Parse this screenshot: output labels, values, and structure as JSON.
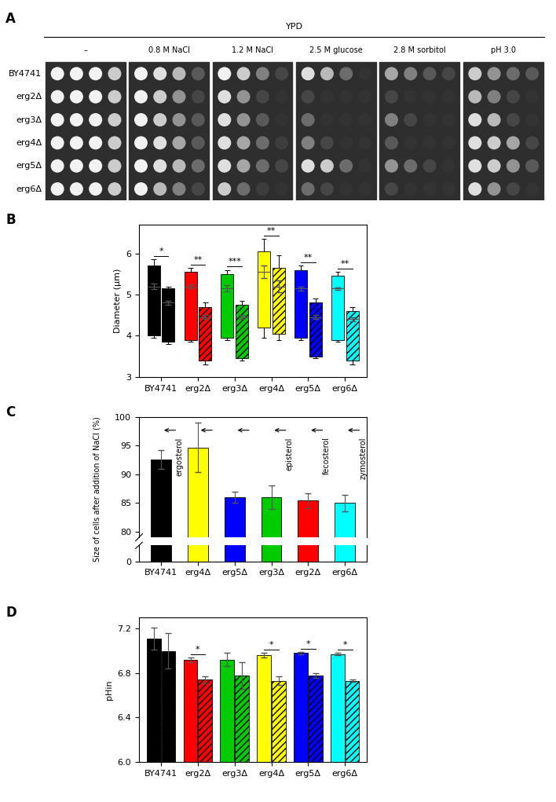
{
  "panel_a": {
    "panel_label": "A",
    "header": "YPD",
    "conditions": [
      "–",
      "0.8 M NaCl",
      "1.2 M NaCl",
      "2.5 M glucose",
      "2.8 M sorbitol",
      "pH 3.0"
    ],
    "strains": [
      "BY4741",
      "erg2Δ",
      "erg3Δ",
      "erg4Δ",
      "erg5Δ",
      "erg6Δ"
    ],
    "growth": [
      [
        [
          1,
          1,
          1,
          0.8
        ],
        [
          1,
          1,
          1,
          0.8
        ],
        [
          1,
          1,
          1,
          0.8
        ],
        [
          1,
          1,
          1,
          0.8
        ],
        [
          1,
          1,
          1,
          0.8
        ],
        [
          1,
          1,
          1,
          0.8
        ]
      ],
      [
        [
          1,
          0.9,
          0.7,
          0.2
        ],
        [
          1,
          0.8,
          0.5,
          0.1
        ],
        [
          1,
          0.8,
          0.5,
          0.2
        ],
        [
          1,
          0.9,
          0.6,
          0.2
        ],
        [
          1,
          0.9,
          0.7,
          0.3
        ],
        [
          1,
          0.7,
          0.4,
          0.1
        ]
      ],
      [
        [
          1,
          0.8,
          0.4,
          0.1
        ],
        [
          0.9,
          0.5,
          0.1,
          0
        ],
        [
          0.9,
          0.5,
          0.2,
          0
        ],
        [
          0.9,
          0.6,
          0.3,
          0.05
        ],
        [
          0.9,
          0.6,
          0.3,
          0.1
        ],
        [
          0.8,
          0.3,
          0.05,
          0
        ]
      ],
      [
        [
          0.9,
          0.7,
          0.3,
          0
        ],
        [
          0.1,
          0,
          0,
          0
        ],
        [
          0.3,
          0,
          0,
          0
        ],
        [
          0.4,
          0.1,
          0,
          0
        ],
        [
          0.9,
          0.8,
          0.3,
          0
        ],
        [
          0.3,
          0.1,
          0,
          0
        ]
      ],
      [
        [
          0.6,
          0.4,
          0.2,
          0.1
        ],
        [
          0.1,
          0,
          0,
          0
        ],
        [
          0.4,
          0.1,
          0,
          0
        ],
        [
          0.2,
          0,
          0,
          0
        ],
        [
          0.5,
          0.3,
          0.1,
          0
        ],
        [
          0.1,
          0,
          0,
          0
        ]
      ],
      [
        [
          0.8,
          0.5,
          0.3,
          0.2
        ],
        [
          0.7,
          0.4,
          0.1,
          0
        ],
        [
          0.9,
          0.7,
          0.1,
          0
        ],
        [
          0.9,
          0.8,
          0.6,
          0.1
        ],
        [
          0.9,
          0.8,
          0.5,
          0.2
        ],
        [
          0.9,
          0.5,
          0.1,
          0
        ]
      ]
    ]
  },
  "chart_data": [
    {
      "type": "box",
      "panel_label": "B",
      "categories": [
        "BY4741",
        "erg2Δ",
        "erg3Δ",
        "erg4Δ",
        "erg5Δ",
        "erg6Δ"
      ],
      "colors": [
        "#000000",
        "#ff0000",
        "#00cc00",
        "#ffff00",
        "#0000ff",
        "#00ffff"
      ],
      "ylabel": "Diameter (μm)",
      "ylim": [
        3,
        6.7
      ],
      "yticks": [
        3,
        4,
        5,
        6
      ],
      "groups": [
        {
          "whisker_low": [
            3.95,
            3.85,
            3.9,
            3.95,
            3.9,
            3.85
          ],
          "q1": [
            4.0,
            3.9,
            3.95,
            4.2,
            3.95,
            3.9
          ],
          "q3": [
            5.7,
            5.55,
            5.5,
            6.05,
            5.6,
            5.45
          ],
          "whisker_high": [
            5.85,
            5.65,
            5.6,
            6.35,
            5.7,
            5.55
          ],
          "mean": [
            5.2,
            5.2,
            5.15,
            5.55,
            5.15,
            5.15
          ],
          "mean_error": [
            0.07,
            0.05,
            0.07,
            0.15,
            0.05,
            0.03
          ]
        },
        {
          "whisker_low": [
            3.8,
            3.3,
            3.4,
            3.9,
            3.45,
            3.3
          ],
          "q1": [
            3.85,
            3.4,
            3.45,
            4.05,
            3.5,
            3.4
          ],
          "q3": [
            5.15,
            4.7,
            4.75,
            5.65,
            4.8,
            4.6
          ],
          "whisker_high": [
            5.2,
            4.8,
            4.85,
            5.95,
            4.9,
            4.7
          ],
          "mean": [
            4.8,
            4.45,
            4.45,
            5.2,
            4.45,
            4.4
          ],
          "mean_error": [
            0.05,
            0.05,
            0.05,
            0.15,
            0.05,
            0.04
          ]
        }
      ],
      "significance": [
        "*",
        "**",
        "***",
        "**",
        "**",
        "**"
      ]
    },
    {
      "type": "bar",
      "panel_label": "C",
      "categories": [
        "BY4741",
        "erg4Δ",
        "erg5Δ",
        "erg3Δ",
        "erg2Δ",
        "erg6Δ"
      ],
      "colors": [
        "#000000",
        "#ffff00",
        "#0000ff",
        "#00cc00",
        "#ff0000",
        "#00ffff"
      ],
      "values": [
        92.6,
        94.7,
        86.0,
        86.0,
        85.4,
        85.0
      ],
      "errors": [
        1.6,
        4.3,
        0.9,
        2.0,
        1.3,
        1.4
      ],
      "ylabel": "Size of cells after addition of NaCl (%)",
      "ylim": [
        79,
        100
      ],
      "yticks": [
        80,
        85,
        90,
        95,
        100
      ],
      "break_ylim": [
        0,
        1.5
      ],
      "break_yticks": [
        0
      ],
      "annotations": [
        {
          "text": "ergosterol",
          "category": "BY4741"
        },
        {
          "text": "episterol",
          "category": "erg3Δ"
        },
        {
          "text": "fecosterol",
          "category": "erg2Δ"
        },
        {
          "text": "zymosterol",
          "category": "erg6Δ"
        }
      ]
    },
    {
      "type": "bar",
      "panel_label": "D",
      "categories": [
        "BY4741",
        "erg2Δ",
        "erg3Δ",
        "erg4Δ",
        "erg5Δ",
        "erg6Δ"
      ],
      "colors": [
        "#000000",
        "#ff0000",
        "#00cc00",
        "#ffff00",
        "#0000ff",
        "#00ffff"
      ],
      "groups": [
        {
          "values": [
            7.11,
            6.92,
            6.92,
            6.96,
            6.98,
            6.97
          ],
          "errors": [
            0.1,
            0.02,
            0.06,
            0.02,
            0.01,
            0.01
          ]
        },
        {
          "values": [
            7.0,
            6.74,
            6.78,
            6.73,
            6.78,
            6.73
          ],
          "errors": [
            0.16,
            0.03,
            0.12,
            0.04,
            0.02,
            0.01
          ]
        }
      ],
      "ylabel": "pHin",
      "ylim": [
        6.0,
        7.3
      ],
      "yticks": [
        6.0,
        6.4,
        6.8,
        7.2
      ],
      "significance": [
        null,
        "*",
        null,
        "*",
        "*",
        "*"
      ]
    }
  ]
}
